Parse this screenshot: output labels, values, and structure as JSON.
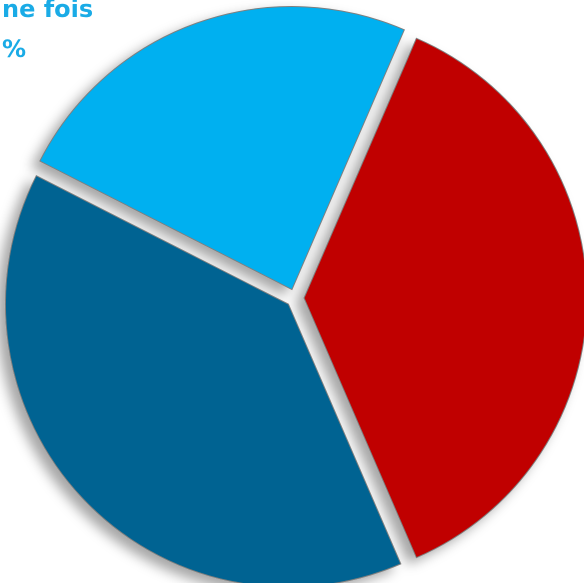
{
  "chart_data": {
    "type": "pie",
    "annotations": [
      "ne fois",
      "%"
    ],
    "annotation_color": "#1aabe6",
    "values": [
      24,
      37,
      39
    ],
    "colors": [
      "#00b0f0",
      "#c00000",
      "#006492"
    ]
  }
}
